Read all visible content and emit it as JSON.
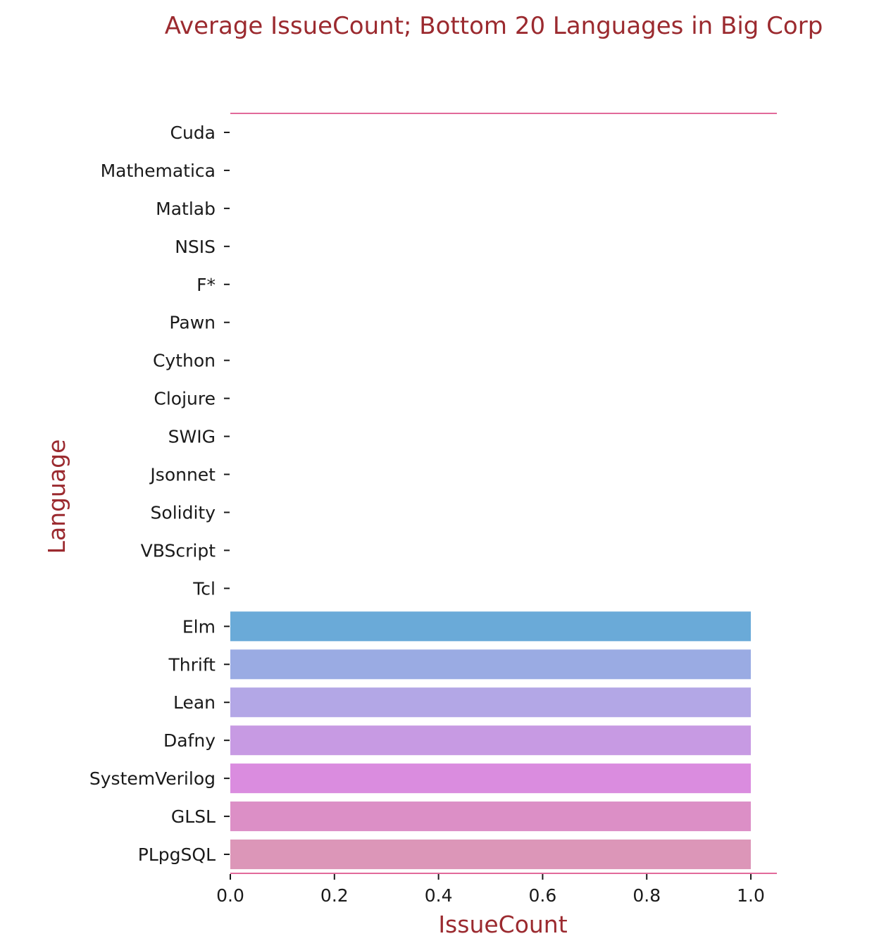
{
  "chart_data": {
    "type": "bar",
    "orientation": "horizontal",
    "title": "Average IssueCount; Bottom 20 Languages in Big Corp",
    "xlabel": "IssueCount",
    "ylabel": "Language",
    "xlim": [
      0,
      1.05
    ],
    "xticks": [
      "0.0",
      "0.2",
      "0.4",
      "0.6",
      "0.8",
      "1.0"
    ],
    "categories": [
      "Cuda",
      "Mathematica",
      "Matlab",
      "NSIS",
      "F*",
      "Pawn",
      "Cython",
      "Clojure",
      "SWIG",
      "Jsonnet",
      "Solidity",
      "VBScript",
      "Tcl",
      "Elm",
      "Thrift",
      "Lean",
      "Dafny",
      "SystemVerilog",
      "GLSL",
      "PLpgSQL"
    ],
    "values": [
      0,
      0,
      0,
      0,
      0,
      0,
      0,
      0,
      0,
      0,
      0,
      0,
      0,
      1,
      1,
      1,
      1,
      1,
      1,
      1
    ],
    "bar_colors": [
      "#6aaad8",
      "#6aaad8",
      "#6aaad8",
      "#6aaad8",
      "#6aaad8",
      "#6aaad8",
      "#6aaad8",
      "#6aaad8",
      "#6aaad8",
      "#6aaad8",
      "#6aaad8",
      "#6aaad8",
      "#6aaad8",
      "#6aaad8",
      "#9aabe3",
      "#b3a7e6",
      "#c79ae3",
      "#da8cdf",
      "#dc8fc6",
      "#dc96b8"
    ],
    "grid": false,
    "spine_color": "#e26a9a",
    "text_color": "#9b2a2f"
  }
}
